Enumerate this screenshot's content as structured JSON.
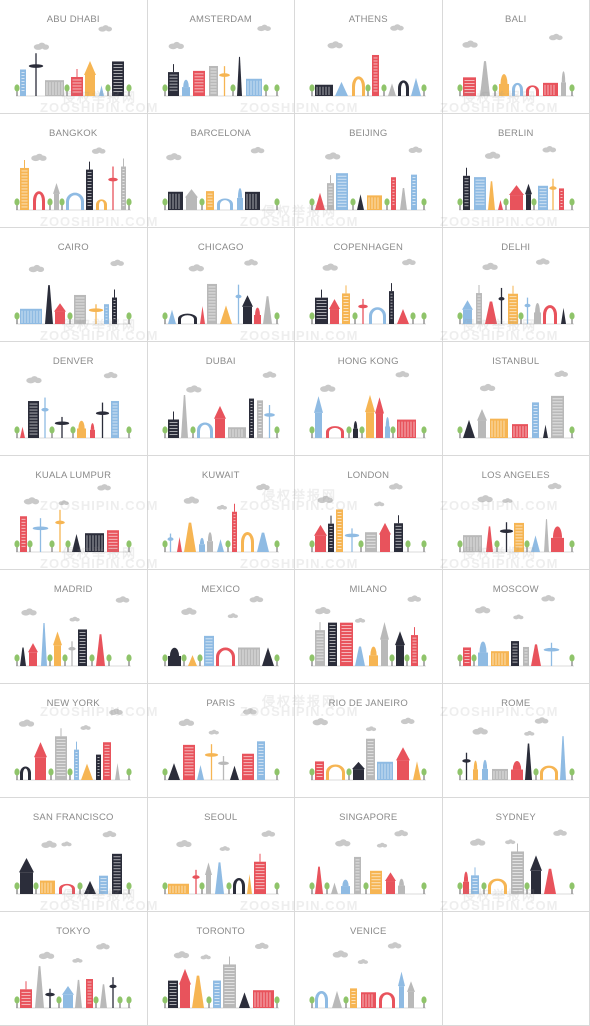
{
  "colors": {
    "red": "#e8535c",
    "blue": "#8fbbe3",
    "yellow": "#f6b553",
    "dark": "#2b2d3a",
    "grey": "#b9b9b9",
    "green": "#8fc46a",
    "cloud": "#c9c9c9",
    "label": "#8a8a8a"
  },
  "watermark": {
    "cn": "侵权举报网",
    "en": "ZOOSHIPIN.COM"
  },
  "cities": [
    {
      "name": "ABU DHABI",
      "theme": [
        "blue",
        "dark",
        "grey",
        "red",
        "yellow"
      ]
    },
    {
      "name": "AMSTERDAM",
      "theme": [
        "dark",
        "blue",
        "red",
        "grey",
        "yellow"
      ]
    },
    {
      "name": "ATHENS",
      "theme": [
        "dark",
        "blue",
        "yellow",
        "red",
        "grey"
      ]
    },
    {
      "name": "BALI",
      "theme": [
        "red",
        "grey",
        "yellow",
        "blue",
        "red"
      ]
    },
    {
      "name": "BANGKOK",
      "theme": [
        "yellow",
        "red",
        "grey",
        "blue",
        "dark"
      ]
    },
    {
      "name": "BARCELONA",
      "theme": [
        "dark",
        "grey",
        "yellow",
        "blue",
        "blue"
      ]
    },
    {
      "name": "BEIJING",
      "theme": [
        "red",
        "grey",
        "blue",
        "dark",
        "yellow"
      ]
    },
    {
      "name": "BERLIN",
      "theme": [
        "dark",
        "blue",
        "yellow",
        "red",
        "red"
      ]
    },
    {
      "name": "CAIRO",
      "theme": [
        "blue",
        "dark",
        "red",
        "grey",
        "yellow"
      ]
    },
    {
      "name": "CHICAGO",
      "theme": [
        "blue",
        "dark",
        "red",
        "grey",
        "yellow"
      ]
    },
    {
      "name": "COPENHAGEN",
      "theme": [
        "dark",
        "red",
        "yellow",
        "red",
        "blue"
      ]
    },
    {
      "name": "DELHI",
      "theme": [
        "blue",
        "grey",
        "red",
        "dark",
        "yellow"
      ]
    },
    {
      "name": "DENVER",
      "theme": [
        "red",
        "dark",
        "blue",
        "dark",
        "yellow"
      ]
    },
    {
      "name": "DUBAI",
      "theme": [
        "dark",
        "grey",
        "blue",
        "red",
        "grey"
      ]
    },
    {
      "name": "HONG KONG",
      "theme": [
        "blue",
        "red",
        "dark",
        "yellow",
        "red"
      ]
    },
    {
      "name": "ISTANBUL",
      "theme": [
        "dark",
        "grey",
        "yellow",
        "red",
        "blue"
      ]
    },
    {
      "name": "KUALA LUMPUR",
      "theme": [
        "red",
        "blue",
        "yellow",
        "dark",
        "dark"
      ]
    },
    {
      "name": "KUWAIT",
      "theme": [
        "blue",
        "red",
        "yellow",
        "blue",
        "grey"
      ]
    },
    {
      "name": "LONDON",
      "theme": [
        "red",
        "dark",
        "yellow",
        "blue",
        "grey"
      ]
    },
    {
      "name": "LOS ANGELES",
      "theme": [
        "grey",
        "red",
        "dark",
        "yellow",
        "blue"
      ]
    },
    {
      "name": "MADRID",
      "theme": [
        "dark",
        "red",
        "blue",
        "yellow",
        "grey"
      ]
    },
    {
      "name": "MEXICO",
      "theme": [
        "dark",
        "yellow",
        "blue",
        "red",
        "grey"
      ]
    },
    {
      "name": "MILANO",
      "theme": [
        "grey",
        "dark",
        "red",
        "blue",
        "yellow"
      ]
    },
    {
      "name": "MOSCOW",
      "theme": [
        "red",
        "blue",
        "yellow",
        "dark",
        "grey"
      ]
    },
    {
      "name": "NEW YORK",
      "theme": [
        "dark",
        "red",
        "grey",
        "blue",
        "yellow"
      ]
    },
    {
      "name": "PARIS",
      "theme": [
        "dark",
        "red",
        "blue",
        "yellow",
        "grey"
      ]
    },
    {
      "name": "RIO DE JANEIRO",
      "theme": [
        "red",
        "yellow",
        "dark",
        "grey",
        "blue"
      ]
    },
    {
      "name": "ROME",
      "theme": [
        "dark",
        "yellow",
        "blue",
        "grey",
        "red"
      ]
    },
    {
      "name": "SAN FRANCISCO",
      "theme": [
        "dark",
        "yellow",
        "red",
        "dark",
        "blue"
      ]
    },
    {
      "name": "SEOUL",
      "theme": [
        "yellow",
        "red",
        "grey",
        "blue",
        "dark"
      ]
    },
    {
      "name": "SINGAPORE",
      "theme": [
        "red",
        "grey",
        "blue",
        "grey",
        "yellow"
      ]
    },
    {
      "name": "SYDNEY",
      "theme": [
        "red",
        "blue",
        "yellow",
        "grey",
        "dark"
      ]
    },
    {
      "name": "TOKYO",
      "theme": [
        "red",
        "grey",
        "dark",
        "blue",
        "grey"
      ]
    },
    {
      "name": "TORONTO",
      "theme": [
        "dark",
        "red",
        "yellow",
        "blue",
        "grey"
      ]
    },
    {
      "name": "VENICE",
      "theme": [
        "blue",
        "grey",
        "yellow",
        "red",
        "red"
      ]
    }
  ]
}
